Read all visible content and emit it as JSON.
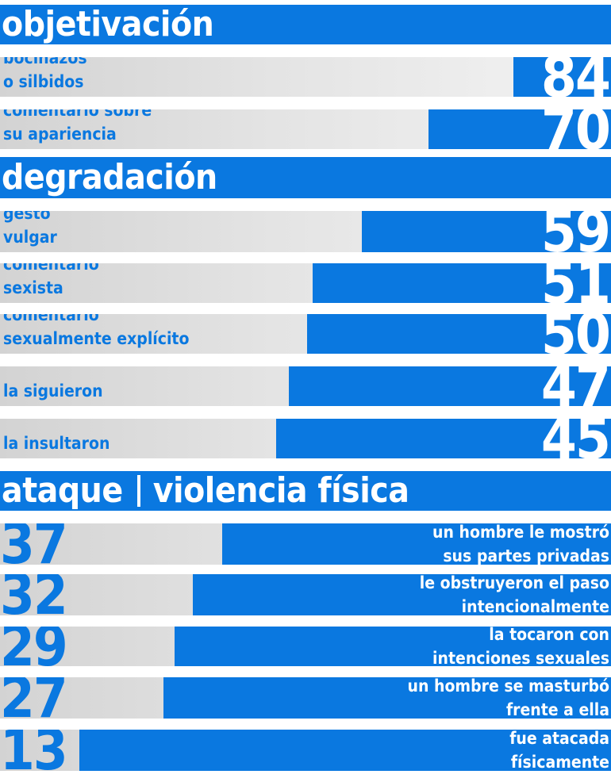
{
  "sections": [
    {
      "title": "objetivación",
      "rows": [
        {
          "label": [
            "bocinazos",
            "o silbidos"
          ],
          "value": 84
        },
        {
          "label": [
            "comentario sobre",
            "su apariencia"
          ],
          "value": 70
        }
      ]
    },
    {
      "title": "degradación",
      "rows": [
        {
          "label": [
            "gesto",
            "vulgar"
          ],
          "value": 59
        },
        {
          "label": [
            "comentario",
            "sexista"
          ],
          "value": 51
        },
        {
          "label": [
            "comentario",
            "sexualmente explícito"
          ],
          "value": 50
        },
        {
          "label": [
            "la siguieron"
          ],
          "value": 47
        },
        {
          "label": [
            "la insultaron"
          ],
          "value": 45
        }
      ]
    },
    {
      "title_parts": [
        "ataque",
        "violencia física"
      ],
      "rows": [
        {
          "label": [
            "un hombre le mostró",
            "sus partes privadas"
          ],
          "value": 37
        },
        {
          "label": [
            "le obstruyeron el paso",
            "intencionalmente"
          ],
          "value": 32
        },
        {
          "label": [
            "la tocaron con",
            "intenciones sexuales"
          ],
          "value": 29
        },
        {
          "label": [
            "un hombre se masturbó",
            "frente a ella"
          ],
          "value": 27
        },
        {
          "label": [
            "fue atacada",
            "físicamente"
          ],
          "value": 13
        }
      ]
    }
  ],
  "chart_data": {
    "type": "bar",
    "orientation": "horizontal",
    "xlim": [
      0,
      100
    ],
    "groups": [
      "objetivación",
      "degradación",
      "ataque | violencia física"
    ],
    "categories": [
      "bocinazos o silbidos",
      "comentario sobre su apariencia",
      "gesto vulgar",
      "comentario sexista",
      "comentario sexualmente explícito",
      "la siguieron",
      "la insultaron",
      "un hombre le mostró sus partes privadas",
      "le obstruyeron el paso intencionalmente",
      "la tocaron con intenciones sexuales",
      "un hombre se masturbó frente a ella",
      "fue atacada físicamente"
    ],
    "category_group": [
      0,
      0,
      1,
      1,
      1,
      1,
      1,
      2,
      2,
      2,
      2,
      2
    ],
    "values": [
      84,
      70,
      59,
      51,
      50,
      47,
      45,
      37,
      32,
      29,
      27,
      13
    ]
  },
  "colors": {
    "accent": "#0a78e0",
    "text_on_accent": "#ffffff"
  }
}
